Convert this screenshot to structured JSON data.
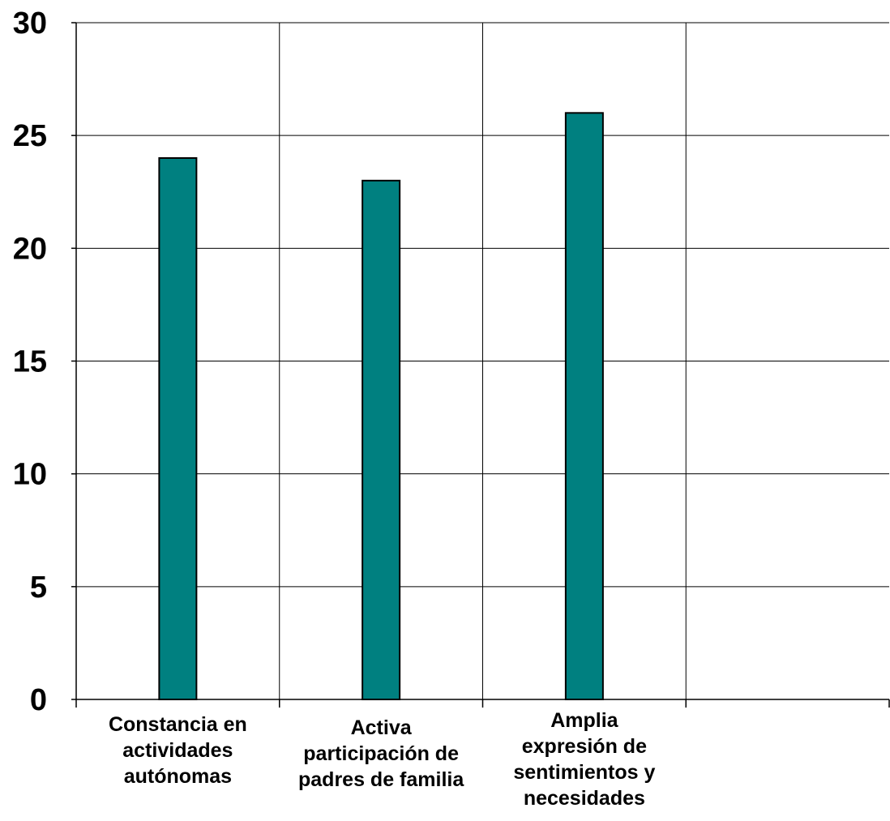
{
  "chart_data": {
    "type": "bar",
    "title": "",
    "xlabel": "",
    "ylabel": "",
    "ylim": [
      0,
      30
    ],
    "yticks": [
      0,
      5,
      10,
      15,
      20,
      25,
      30
    ],
    "grid": true,
    "categories": [
      [
        "Constancia en",
        "actividades",
        "autónomas"
      ],
      [
        "Activa",
        "participación de",
        "padres de familia"
      ],
      [
        "Amplia",
        "expresión de",
        "sentimientos y",
        "necesidades"
      ],
      [
        ""
      ]
    ],
    "series": [
      {
        "values": [
          24,
          23,
          26,
          null
        ]
      }
    ],
    "colors": {
      "bar_fill": "#008080",
      "bar_stroke": "#000000",
      "grid": "#000000",
      "axis": "#000000"
    }
  }
}
